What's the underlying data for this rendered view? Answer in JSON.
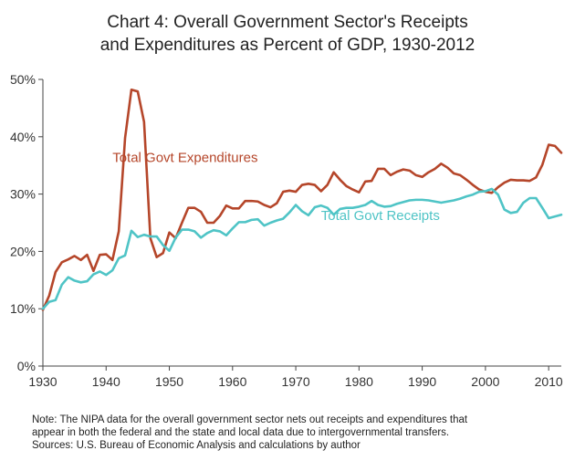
{
  "chart_data": {
    "type": "line",
    "title_line1": "Chart 4: Overall Government  Sector's Receipts",
    "title_line2": "and Expenditures as Percent of GDP, 1930-2012",
    "xlabel": "",
    "ylabel": "",
    "xlim": [
      1930,
      2012
    ],
    "ylim": [
      0,
      50
    ],
    "x_ticks": [
      1930,
      1940,
      1950,
      1960,
      1970,
      1980,
      1990,
      2000,
      2010
    ],
    "y_ticks": [
      0,
      10,
      20,
      30,
      40,
      50
    ],
    "y_tick_labels": [
      "0%",
      "10%",
      "20%",
      "30%",
      "40%",
      "50%"
    ],
    "grid": false,
    "x": [
      1930,
      1931,
      1932,
      1933,
      1934,
      1935,
      1936,
      1937,
      1938,
      1939,
      1940,
      1941,
      1942,
      1943,
      1944,
      1945,
      1946,
      1947,
      1948,
      1949,
      1950,
      1951,
      1952,
      1953,
      1954,
      1955,
      1956,
      1957,
      1958,
      1959,
      1960,
      1961,
      1962,
      1963,
      1964,
      1965,
      1966,
      1967,
      1968,
      1969,
      1970,
      1971,
      1972,
      1973,
      1974,
      1975,
      1976,
      1977,
      1978,
      1979,
      1980,
      1981,
      1982,
      1983,
      1984,
      1985,
      1986,
      1987,
      1988,
      1989,
      1990,
      1991,
      1992,
      1993,
      1994,
      1995,
      1996,
      1997,
      1998,
      1999,
      2000,
      2001,
      2002,
      2003,
      2004,
      2005,
      2006,
      2007,
      2008,
      2009,
      2010,
      2011,
      2012
    ],
    "series": [
      {
        "name": "Total Govt Expenditures",
        "color": "#b5462a",
        "values": [
          9.8,
          12.3,
          16.4,
          18.1,
          18.6,
          19.2,
          18.5,
          19.4,
          16.6,
          19.4,
          19.5,
          18.5,
          23.5,
          39.8,
          48.2,
          47.9,
          42.6,
          22.3,
          19.0,
          19.7,
          23.3,
          22.3,
          25.0,
          27.6,
          27.6,
          26.9,
          25.0,
          25.0,
          26.2,
          28.0,
          27.5,
          27.5,
          28.8,
          28.8,
          28.7,
          28.1,
          27.7,
          28.4,
          30.4,
          30.6,
          30.4,
          31.6,
          31.8,
          31.6,
          30.5,
          31.6,
          33.8,
          32.5,
          31.4,
          30.8,
          30.3,
          32.2,
          32.3,
          34.4,
          34.4,
          33.3,
          33.9,
          34.3,
          34.1,
          33.3,
          33.0,
          33.8,
          34.4,
          35.3,
          34.6,
          33.6,
          33.3,
          32.5,
          31.6,
          30.8,
          30.4,
          30.2,
          31.2,
          32.0,
          32.5,
          32.4,
          32.4,
          32.3,
          32.9,
          35.1,
          38.6,
          38.4,
          37.2
        ]
      },
      {
        "name": "Total Govt Receipts",
        "color": "#4fc4c6",
        "values": [
          10.0,
          11.2,
          11.5,
          14.2,
          15.5,
          14.9,
          14.6,
          14.8,
          16.0,
          16.5,
          15.9,
          16.7,
          18.8,
          19.3,
          23.6,
          22.5,
          22.9,
          22.6,
          22.6,
          21.1,
          20.1,
          22.4,
          23.8,
          23.8,
          23.5,
          22.4,
          23.2,
          23.7,
          23.5,
          22.8,
          24.0,
          25.1,
          25.1,
          25.5,
          25.6,
          24.5,
          25.0,
          25.4,
          25.7,
          26.8,
          28.1,
          27.0,
          26.3,
          27.7,
          28.0,
          27.6,
          26.4,
          27.4,
          27.6,
          27.6,
          27.8,
          28.1,
          28.8,
          28.1,
          27.8,
          27.9,
          28.3,
          28.6,
          28.9,
          29.0,
          29.0,
          28.9,
          28.7,
          28.5,
          28.7,
          28.9,
          29.2,
          29.6,
          29.9,
          30.4,
          30.5,
          30.9,
          29.9,
          27.3,
          26.7,
          26.9,
          28.5,
          29.3,
          29.3,
          27.6,
          25.8,
          26.1,
          26.4
        ]
      }
    ],
    "annotations": [
      {
        "series": 0,
        "text": "Total Govt Expenditures",
        "x": 1941,
        "y": 35.6
      },
      {
        "series": 1,
        "text": "Total Govt Receipts",
        "x": 1974,
        "y": 25.5
      }
    ]
  },
  "note": {
    "line1": "Note: The NIPA data for the overall government sector nets out receipts and expenditures that",
    "line2": "appear in both the federal and the state and local data due to intergovernmental transfers.",
    "line3": "Sources: U.S. Bureau of Economic Analysis and calculations by author"
  }
}
